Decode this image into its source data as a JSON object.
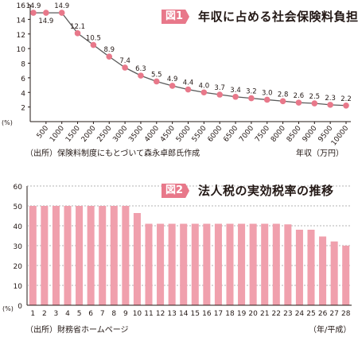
{
  "chart_data": [
    {
      "type": "line",
      "badge": "図1",
      "title": "年収に占める社会保険料負担率",
      "source": "（出所）保険料制度にもとづいて森永卓郎氏作成",
      "xlabel": "年収（万円）",
      "ylabel": "(%)",
      "ylim": [
        0,
        16
      ],
      "yticks": [
        2,
        4,
        6,
        8,
        10,
        12,
        14,
        16
      ],
      "x_ticks": [
        "500",
        "1000",
        "1500",
        "2000",
        "2500",
        "3000",
        "3500",
        "4000",
        "4500",
        "5000",
        "5500",
        "6000",
        "6500",
        "7000",
        "7500",
        "8000",
        "8500",
        "9000",
        "9500",
        "10000"
      ],
      "x": [
        100,
        500,
        1000,
        1500,
        2000,
        2500,
        3000,
        3500,
        4000,
        4500,
        5000,
        5500,
        6000,
        6500,
        7000,
        7500,
        8000,
        8500,
        9000,
        9500,
        10000
      ],
      "values": [
        14.9,
        14.9,
        14.9,
        12.1,
        10.5,
        8.9,
        7.4,
        6.3,
        5.5,
        4.9,
        4.4,
        4.0,
        3.7,
        3.4,
        3.2,
        3.0,
        2.8,
        2.6,
        2.5,
        2.3,
        2.2
      ],
      "labels": [
        "14.9",
        "14.9",
        "14.9",
        "12.1",
        "10.5",
        "8.9",
        "7.4",
        "6.3",
        "5.5",
        "4.9",
        "4.4",
        "4.0",
        "3.7",
        "3.4",
        "3.2",
        "3.0",
        "2.8",
        "2.6",
        "2.5",
        "2.3",
        "2.2"
      ],
      "line_color": "#5a5a5a",
      "marker_color": "#e8788a",
      "grid": false
    },
    {
      "type": "bar",
      "badge": "図2",
      "title": "法人税の実効税率の推移",
      "source": "（出所）財務省ホームページ",
      "xlabel": "（年/平成）",
      "ylabel": "(%)",
      "ylim": [
        0,
        60
      ],
      "yticks": [
        0,
        10,
        20,
        30,
        40,
        50,
        60
      ],
      "categories": [
        "1",
        "2",
        "3",
        "4",
        "5",
        "6",
        "7",
        "8",
        "9",
        "10",
        "11",
        "12",
        "13",
        "14",
        "15",
        "16",
        "17",
        "18",
        "19",
        "20",
        "21",
        "22",
        "23",
        "24",
        "25",
        "26",
        "27",
        "28"
      ],
      "values": [
        50,
        50,
        50,
        50,
        50,
        50,
        50,
        50,
        50,
        46.4,
        41,
        41,
        41,
        41,
        41,
        41,
        41,
        41,
        41,
        41,
        41,
        41,
        40.7,
        38,
        38,
        34.6,
        32.1,
        29.97
      ],
      "bar_color": "#f0a0ad",
      "grid": "dashed"
    }
  ]
}
